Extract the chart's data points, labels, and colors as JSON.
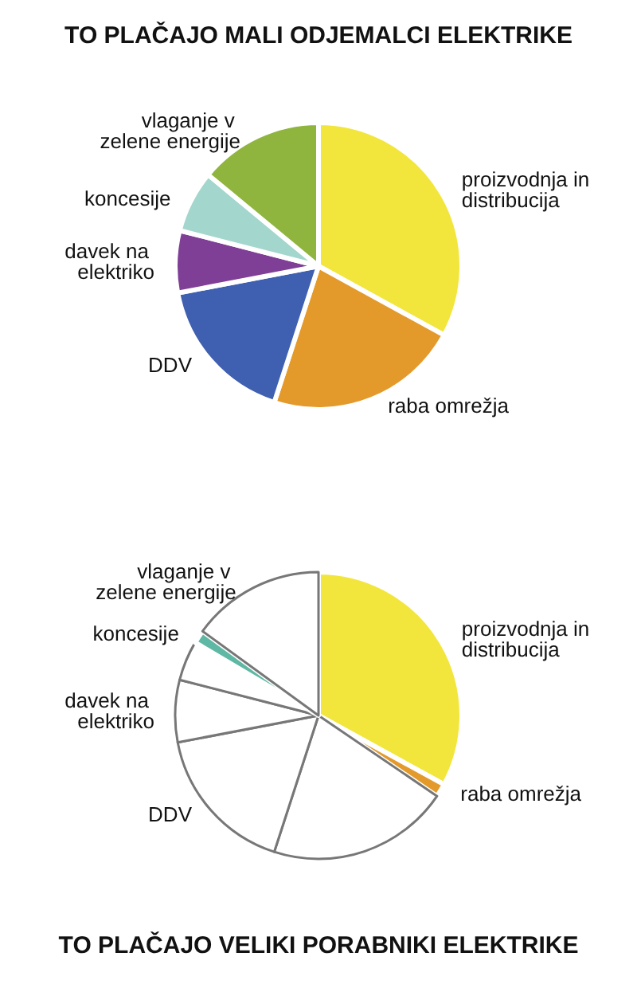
{
  "chart_data": [
    {
      "type": "pie",
      "title": "TO PLAČAJO MALI ODJEMALCI ELEKTRIKE",
      "legend": false,
      "categories": [
        "proizvodnja in distribucija",
        "raba omrežja",
        "DDV",
        "davek na elektriko",
        "koncesije",
        "vlaganje v zelene energije"
      ],
      "values": [
        33,
        22,
        17,
        7,
        7,
        14
      ],
      "colors": [
        "#f2e63c",
        "#e39a2b",
        "#3f5fb0",
        "#7f3f96",
        "#a3d6cc",
        "#8fb53e"
      ]
    },
    {
      "type": "pie",
      "title": "TO PLAČAJO VELIKI PORABNIKI ELEKTRIKE",
      "legend": false,
      "categories": [
        "proizvodnja in distribucija",
        "raba omrežja",
        null,
        "DDV",
        "davek na elektriko",
        null,
        "koncesije",
        "vlaganje v zelene energije"
      ],
      "values": [
        33,
        1.5,
        20.5,
        17,
        7,
        4.5,
        1.5,
        15
      ],
      "colors": [
        "#f2e63c",
        "#e39a2b",
        "#ffffff",
        "#ffffff",
        "#ffffff",
        "#ffffff",
        "#5fb8a4",
        "#ffffff"
      ]
    }
  ]
}
